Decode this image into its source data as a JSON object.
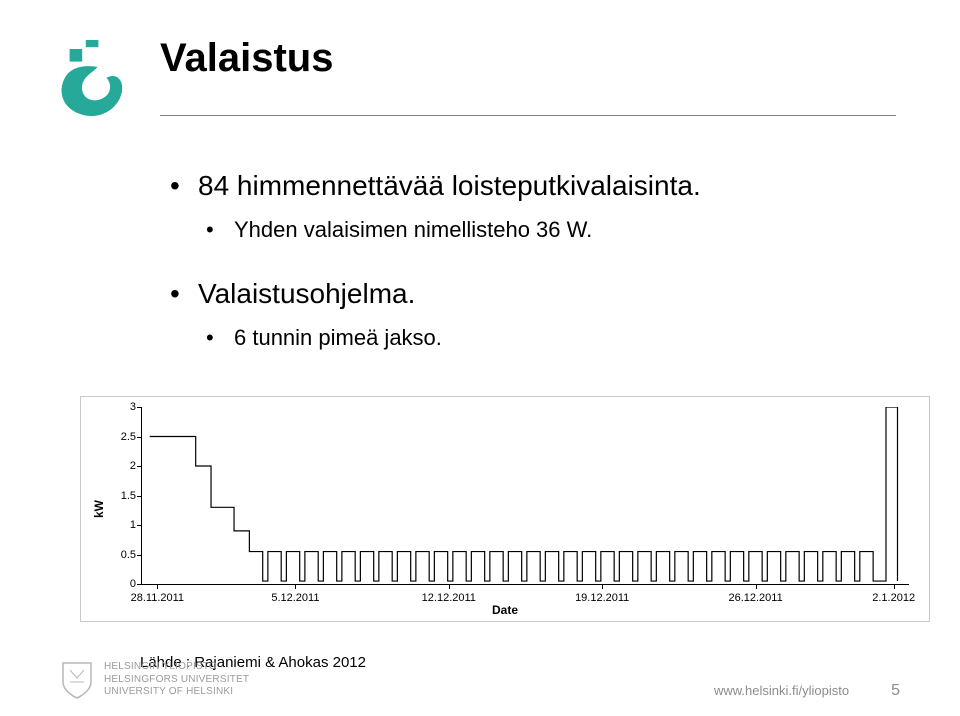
{
  "title": "Valaistus",
  "bullets": {
    "b1": "84 himmennettävää loisteputkivalaisinta.",
    "b1a": "Yhden valaisimen nimellisteho 36 W.",
    "b2": "Valaistusohjelma.",
    "b2a": "6 tunnin pimeä jakso."
  },
  "chart": {
    "type": "line",
    "ylabel": "kW",
    "xlabel": "Date",
    "ylim": [
      0,
      3
    ],
    "ytick_step": 0.5,
    "yticks": [
      "0",
      "0.5",
      "1",
      "1.5",
      "2",
      "2.5",
      "3"
    ],
    "xticks": [
      "28.11.2011",
      "5.12.2011",
      "12.12.2011",
      "19.12.2011",
      "26.12.2011",
      "2.1.2012"
    ],
    "xtick_positions_pct": [
      2,
      20,
      40,
      60,
      80,
      98
    ],
    "line_color": "#000000",
    "background_color": "#ffffff",
    "border_color": "#c9c9c9",
    "line_width": 1,
    "initial_high": 2.5,
    "step_drop_to": 1.3,
    "daily_low": 0.05,
    "daily_high": 0.55,
    "final_spike": 3.0
  },
  "source": "Lähde : Rajaniemi & Ahokas 2012",
  "footer": {
    "line1": "HELSINGIN YLIOPISTO",
    "line2": "HELSINGFORS UNIVERSITET",
    "line3": "UNIVERSITY OF HELSINKI",
    "url": "www.helsinki.fi/yliopisto",
    "page_number": "5"
  },
  "colors": {
    "flame": "#27a99a",
    "text": "#000000",
    "footer_grey": "#9b9b9b",
    "rule": "#808080"
  }
}
